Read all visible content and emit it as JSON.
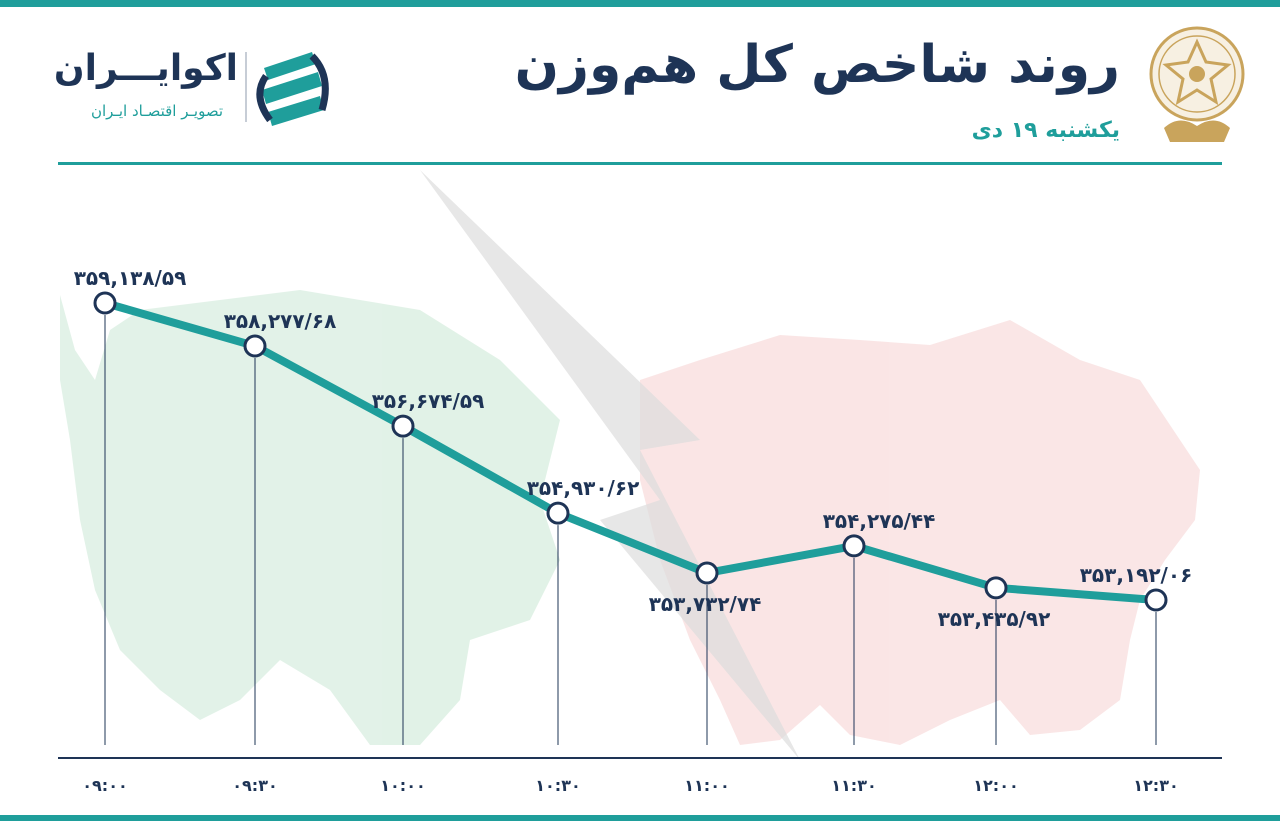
{
  "header": {
    "title": "روند شاخص کل هم‌وزن",
    "subtitle": "یکشنبه ۱۹ دی"
  },
  "brand": {
    "name": "اکوایـــران",
    "tagline": "تصویـر اقتصـاد ایـران",
    "logo_icon": "ecoiran-logo-icon",
    "emblem_icon": "tehran-stock-exchange-emblem-icon"
  },
  "colors": {
    "accent": "#1f9e9b",
    "navy": "#1e3456",
    "bull": "#3faa63",
    "bear": "#e05a5a"
  },
  "chart_data": {
    "type": "line",
    "x": [
      "۰۹:۰۰",
      "۰۹:۳۰",
      "۱۰:۰۰",
      "۱۰:۳۰",
      "۱۱:۰۰",
      "۱۱:۳۰",
      "۱۲:۰۰",
      "۱۲:۳۰"
    ],
    "y": [
      359138.59,
      358277.68,
      356674.59,
      354930.62,
      353732.74,
      354275.44,
      353435.92,
      353192.06
    ],
    "value_labels": [
      "۳۵۹,۱۳۸/۵۹",
      "۳۵۸,۲۷۷/۶۸",
      "۳۵۶,۶۷۴/۵۹",
      "۳۵۴,۹۳۰/۶۲",
      "۳۵۳,۷۳۲/۷۴",
      "۳۵۴,۲۷۵/۴۴",
      "۳۵۳,۴۳۵/۹۲",
      "۳۵۳,۱۹۲/۰۶"
    ],
    "label_side": [
      "above",
      "above",
      "above",
      "above",
      "below",
      "above",
      "below",
      "above"
    ],
    "grid": false
  }
}
